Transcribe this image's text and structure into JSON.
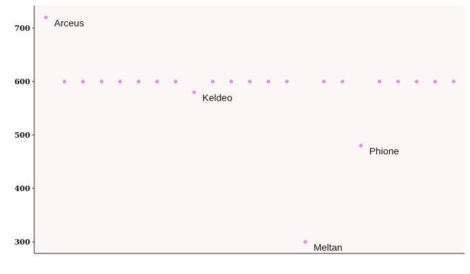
{
  "chart_data": {
    "type": "scatter",
    "title": "",
    "xlabel": "",
    "ylabel": "",
    "ylim": [
      290,
      750
    ],
    "y_ticks": [
      "700",
      "600",
      "500",
      "400",
      "300"
    ],
    "grid": false,
    "legend": "none",
    "point_color": "#ee82ee",
    "plot_background": "#fcf7f7",
    "points": [
      {
        "x": 1,
        "y": 720,
        "label": "Arceus"
      },
      {
        "x": 2,
        "y": 600
      },
      {
        "x": 3,
        "y": 600
      },
      {
        "x": 4,
        "y": 600
      },
      {
        "x": 5,
        "y": 600
      },
      {
        "x": 6,
        "y": 600
      },
      {
        "x": 7,
        "y": 600
      },
      {
        "x": 8,
        "y": 600
      },
      {
        "x": 9,
        "y": 580,
        "label": "Keldeo"
      },
      {
        "x": 10,
        "y": 600
      },
      {
        "x": 11,
        "y": 600
      },
      {
        "x": 12,
        "y": 600
      },
      {
        "x": 13,
        "y": 600
      },
      {
        "x": 14,
        "y": 600
      },
      {
        "x": 15,
        "y": 300,
        "label": "Meltan"
      },
      {
        "x": 16,
        "y": 600
      },
      {
        "x": 17,
        "y": 600
      },
      {
        "x": 18,
        "y": 480,
        "label": "Phione"
      },
      {
        "x": 19,
        "y": 600
      },
      {
        "x": 20,
        "y": 600
      },
      {
        "x": 21,
        "y": 600
      },
      {
        "x": 22,
        "y": 600
      },
      {
        "x": 23,
        "y": 600
      }
    ]
  }
}
